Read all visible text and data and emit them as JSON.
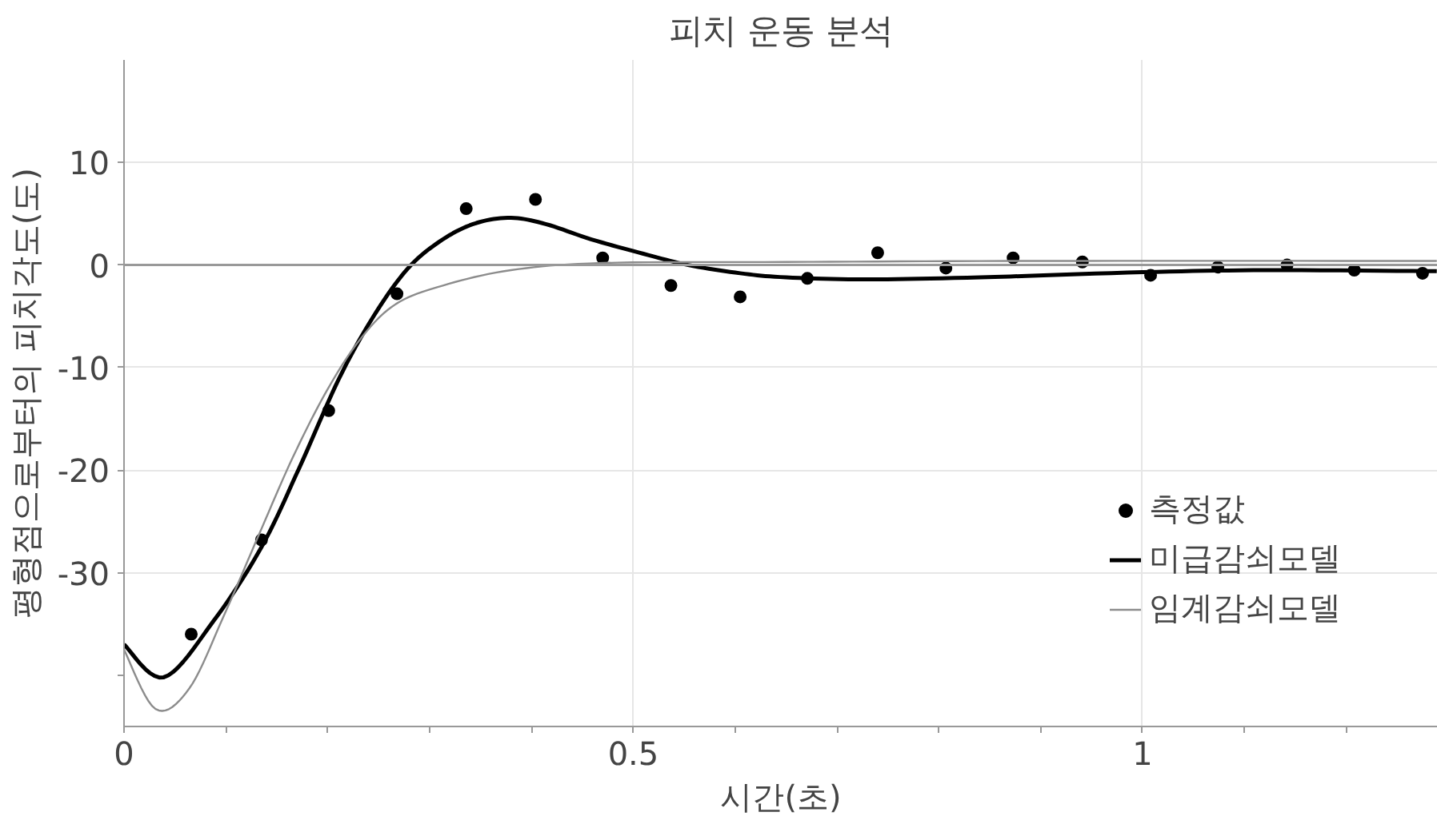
{
  "chart_data": {
    "type": "scatter",
    "title": "피치 운동 분석",
    "xlabel": "시간(초)",
    "ylabel": "평형점으로부터의 피치각도(도)",
    "xlim": [
      0,
      1.29
    ],
    "ylim": [
      -45,
      20
    ],
    "xticks": [
      0,
      {
        "value": 0.1,
        "label": null
      },
      {
        "value": 0.2,
        "label": null
      },
      {
        "value": 0.3,
        "label": null
      },
      {
        "value": 0.4,
        "label": null
      },
      0.5,
      {
        "value": 0.6,
        "label": null
      },
      {
        "value": 0.7,
        "label": null
      },
      {
        "value": 0.8,
        "label": null
      },
      {
        "value": 0.9,
        "label": null
      },
      1,
      {
        "value": 1.1,
        "label": null
      },
      {
        "value": 1.2,
        "label": null
      }
    ],
    "yticks": [
      10,
      0,
      -10,
      -20,
      -30,
      {
        "value": -40,
        "label": null
      }
    ],
    "grid": true,
    "legend": "bottom right",
    "ref_lines": [
      {
        "axis": "y",
        "value": 0,
        "label": null,
        "color": "#999999"
      }
    ],
    "series": [
      {
        "name": "측정값",
        "marker": "circle",
        "color": "#000000",
        "x": [
          0.066,
          0.135,
          0.201,
          0.268,
          0.336,
          0.404,
          0.47,
          0.537,
          0.605,
          0.671,
          0.74,
          0.807,
          0.873,
          0.941,
          1.008,
          1.074,
          1.142,
          1.208,
          1.275
        ],
        "values": [
          -36.0,
          -26.8,
          -14.2,
          -2.8,
          5.5,
          6.4,
          0.7,
          -2.0,
          -3.1,
          -1.3,
          1.2,
          -0.3,
          0.7,
          0.3,
          -1.0,
          -0.2,
          0.0,
          -0.5,
          -0.8
        ]
      },
      {
        "name": "미급감쇠모델",
        "type": "line",
        "color": "#000000",
        "x": [
          0,
          0.039,
          0.088,
          0.135,
          0.172,
          0.211,
          0.245,
          0.279,
          0.313,
          0.346,
          0.38,
          0.414,
          0.459,
          0.51,
          0.554,
          0.605,
          0.65,
          0.73,
          0.841,
          1.0,
          1.123,
          1.289
        ],
        "values": [
          -37.0,
          -40.2,
          -34.7,
          -27.5,
          -19.8,
          -11.1,
          -5.0,
          -0.3,
          2.5,
          4.1,
          4.6,
          4.0,
          2.5,
          1.1,
          0.0,
          -0.8,
          -1.2,
          -1.4,
          -1.2,
          -0.7,
          -0.5,
          -0.6
        ]
      },
      {
        "name": "임계감쇠모델",
        "type": "line",
        "color": "#8c8c8c",
        "x": [
          0,
          0.031,
          0.064,
          0.098,
          0.132,
          0.166,
          0.2,
          0.233,
          0.267,
          0.313,
          0.38,
          0.47,
          0.65,
          0.9,
          1.289
        ],
        "values": [
          -37.5,
          -43.3,
          -41.3,
          -34.2,
          -26.4,
          -18.7,
          -12.1,
          -7.1,
          -3.8,
          -2.0,
          -0.5,
          0.2,
          0.3,
          0.4,
          0.4
        ]
      }
    ]
  }
}
